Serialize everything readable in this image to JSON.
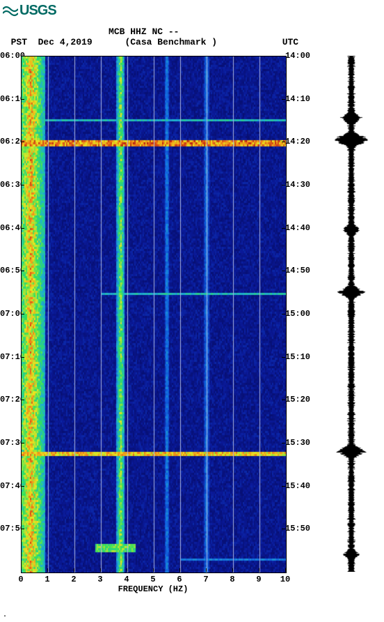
{
  "logo_text": "USGS",
  "header": {
    "station_line": "MCB HHZ NC --",
    "left_tz": "PST",
    "date": "Dec 4,2019",
    "station_name": "(Casa Benchmark )",
    "right_tz": "UTC"
  },
  "spectrogram": {
    "type": "heatmap",
    "x_domain_hz": [
      0,
      10
    ],
    "y_domain_min": [
      0,
      120
    ],
    "x_label": "FREQUENCY (HZ)",
    "x_ticks": [
      0,
      1,
      2,
      3,
      4,
      5,
      6,
      7,
      8,
      9,
      10
    ],
    "y_ticks_left": [
      "06:00",
      "06:10",
      "06:20",
      "06:30",
      "06:40",
      "06:50",
      "07:00",
      "07:10",
      "07:20",
      "07:30",
      "07:40",
      "07:50"
    ],
    "y_ticks_right": [
      "14:00",
      "14:10",
      "14:20",
      "14:30",
      "14:40",
      "14:50",
      "15:00",
      "15:10",
      "15:20",
      "15:30",
      "15:40",
      "15:50"
    ],
    "y_tick_positions_min": [
      0,
      10,
      20,
      30,
      40,
      50,
      60,
      70,
      80,
      90,
      100,
      110
    ],
    "gridlines_x_hz": [
      1,
      2,
      3,
      4,
      5,
      6,
      7,
      8,
      9
    ],
    "gridline_color": "#aab4e0",
    "background_base_color": "#0a1a9a",
    "noise_colors": [
      "#07107a",
      "#0a1a9a",
      "#102bc4",
      "#1842e0",
      "#1f5cf0"
    ],
    "colormap": [
      {
        "v": 0.0,
        "c": "#05085a"
      },
      {
        "v": 0.15,
        "c": "#0a1a9a"
      },
      {
        "v": 0.3,
        "c": "#1060e0"
      },
      {
        "v": 0.45,
        "c": "#20b0d0"
      },
      {
        "v": 0.6,
        "c": "#30e060"
      },
      {
        "v": 0.75,
        "c": "#e8e820"
      },
      {
        "v": 0.88,
        "c": "#f08018"
      },
      {
        "v": 1.0,
        "c": "#b01010"
      }
    ],
    "persistent_bands": [
      {
        "hz_center": 0.35,
        "hz_width": 0.55,
        "intensity": 0.95
      },
      {
        "hz_center": 3.75,
        "hz_width": 0.15,
        "intensity": 0.8
      },
      {
        "hz_center": 5.5,
        "hz_width": 0.1,
        "intensity": 0.42
      },
      {
        "hz_center": 7.0,
        "hz_width": 0.1,
        "intensity": 0.42
      }
    ],
    "events": [
      {
        "t_min": 19.5,
        "dur_min": 1.2,
        "intensity": 0.98,
        "hz_range": [
          0,
          10
        ]
      },
      {
        "t_min": 14.5,
        "dur_min": 0.6,
        "intensity": 0.55,
        "hz_range": [
          0,
          10
        ]
      },
      {
        "t_min": 55.0,
        "dur_min": 0.6,
        "intensity": 0.55,
        "hz_range": [
          3,
          10
        ]
      },
      {
        "t_min": 92.0,
        "dur_min": 1.0,
        "intensity": 0.9,
        "hz_range": [
          0,
          10
        ]
      },
      {
        "t_min": 113.0,
        "dur_min": 2.0,
        "intensity": 0.72,
        "hz_range": [
          2.8,
          4.3
        ]
      },
      {
        "t_min": 116.5,
        "dur_min": 0.5,
        "intensity": 0.4,
        "hz_range": [
          6,
          10
        ]
      }
    ]
  },
  "waveform": {
    "color": "#000000",
    "baseline_amp": 0.18,
    "spikes": [
      {
        "t_min": 14.5,
        "amp": 0.55
      },
      {
        "t_min": 19.5,
        "amp": 1.0
      },
      {
        "t_min": 40.5,
        "amp": 0.45
      },
      {
        "t_min": 55.0,
        "amp": 0.7
      },
      {
        "t_min": 92.0,
        "amp": 0.75
      },
      {
        "t_min": 116.0,
        "amp": 0.4
      }
    ]
  },
  "corner_mark": "."
}
